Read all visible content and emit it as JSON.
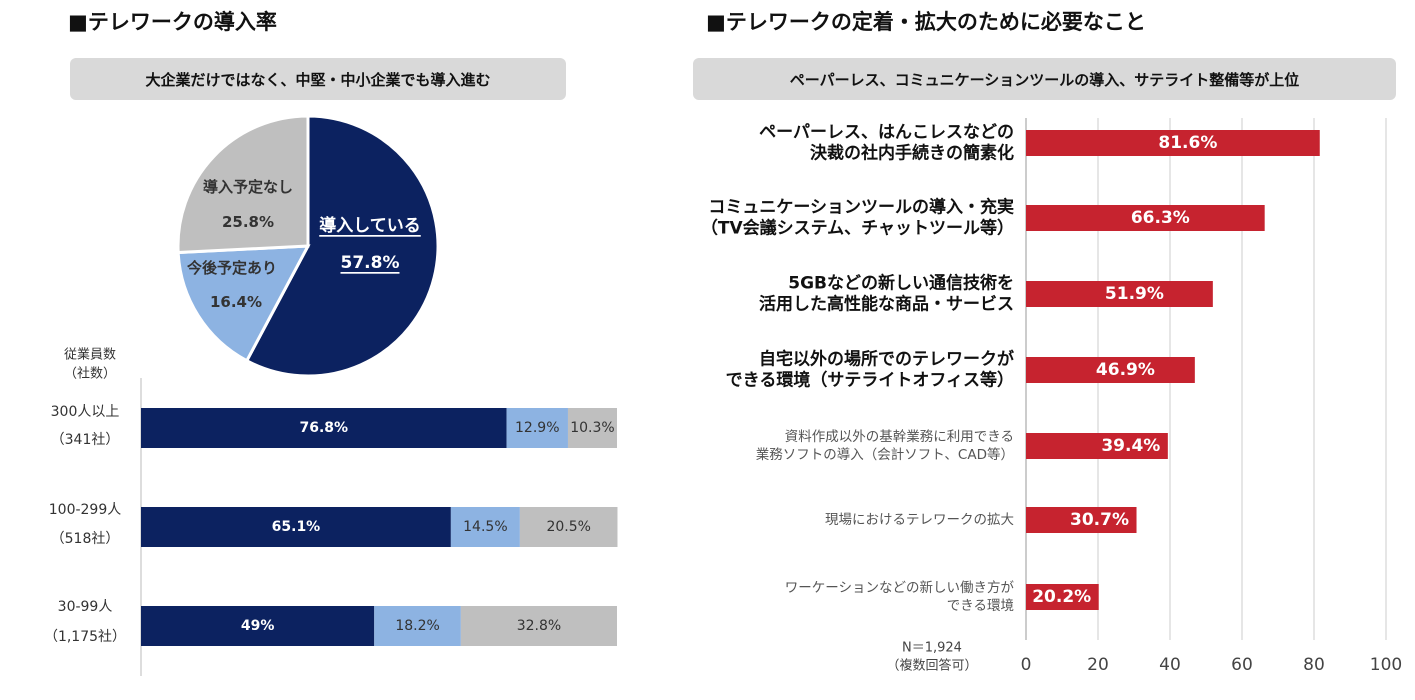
{
  "left": {
    "title": "■テレワークの導入率",
    "banner": "大企業だけではなく、中堅・中小企業でも導入進む"
  },
  "right": {
    "title": "■テレワークの定着・拡大のために必要なこと",
    "banner": "ペーパーレス、コミュニケーションツールの導入、サテライト整備等が上位"
  },
  "colors": {
    "navy": "#0c2260",
    "lightblue": "#8db3e2",
    "gray": "#bfbfbf",
    "red": "#c6232f",
    "axis": "#bbbbbb"
  },
  "chart_data": [
    {
      "type": "pie",
      "title": "",
      "slices": [
        {
          "label": "導入している",
          "value": 57.8,
          "display": "57.8%",
          "color": "#0c2260"
        },
        {
          "label": "今後予定あり",
          "value": 16.4,
          "display": "16.4%",
          "color": "#8db3e2"
        },
        {
          "label": "導入予定なし",
          "value": 25.8,
          "display": "25.8%",
          "color": "#bfbfbf"
        }
      ]
    },
    {
      "type": "bar",
      "orientation": "horizontal",
      "stacked": true,
      "percent_scale": true,
      "y_axis_title_lines": [
        "従業員数",
        "（社数）"
      ],
      "categories": [
        {
          "lines": [
            "300人以上",
            "（341社）"
          ]
        },
        {
          "lines": [
            "100-299人",
            "（518社）"
          ]
        },
        {
          "lines": [
            "30-99人",
            "（1,175社）"
          ]
        }
      ],
      "series": [
        {
          "color": "#0c2260",
          "values": [
            76.8,
            65.1,
            49
          ],
          "labels": [
            "76.8%",
            "65.1%",
            "49%"
          ]
        },
        {
          "color": "#8db3e2",
          "values": [
            12.9,
            14.5,
            18.2
          ],
          "labels": [
            "12.9%",
            "14.5%",
            "18.2%"
          ]
        },
        {
          "color": "#bfbfbf",
          "values": [
            10.3,
            20.5,
            32.8
          ],
          "labels": [
            "10.3%",
            "20.5%",
            "32.8%"
          ]
        }
      ]
    },
    {
      "type": "bar",
      "orientation": "horizontal",
      "xlim": [
        0,
        100
      ],
      "ticks": [
        0,
        20,
        40,
        60,
        80,
        100
      ],
      "grid": true,
      "note_lines": [
        "N＝1,924",
        "（複数回答可）"
      ],
      "bars": [
        {
          "lines": [
            "ペーパーレス、はんこレスなどの",
            "決裁の社内手続きの簡素化"
          ],
          "bold": true,
          "value": 81.6,
          "label": "81.6%"
        },
        {
          "lines": [
            "コミュニケーションツールの導入・充実",
            "（TV会議システム、チャットツール等）"
          ],
          "bold": true,
          "value": 66.3,
          "label": "66.3%"
        },
        {
          "lines": [
            "5GBなどの新しい通信技術を",
            "活用した高性能な商品・サービス"
          ],
          "bold": true,
          "value": 51.9,
          "label": "51.9%"
        },
        {
          "lines": [
            "自宅以外の場所でのテレワークが",
            "できる環境（サテライトオフィス等）"
          ],
          "bold": true,
          "value": 46.9,
          "label": "46.9%"
        },
        {
          "lines": [
            "資料作成以外の基幹業務に利用できる",
            "業務ソフトの導入（会計ソフト、CAD等）"
          ],
          "bold": false,
          "value": 39.4,
          "label": "39.4%"
        },
        {
          "lines": [
            "現場におけるテレワークの拡大"
          ],
          "bold": false,
          "value": 30.7,
          "label": "30.7%"
        },
        {
          "lines": [
            "ワーケーションなどの新しい働き方が",
            "できる環境"
          ],
          "bold": false,
          "value": 20.2,
          "label": "20.2%"
        }
      ]
    }
  ]
}
